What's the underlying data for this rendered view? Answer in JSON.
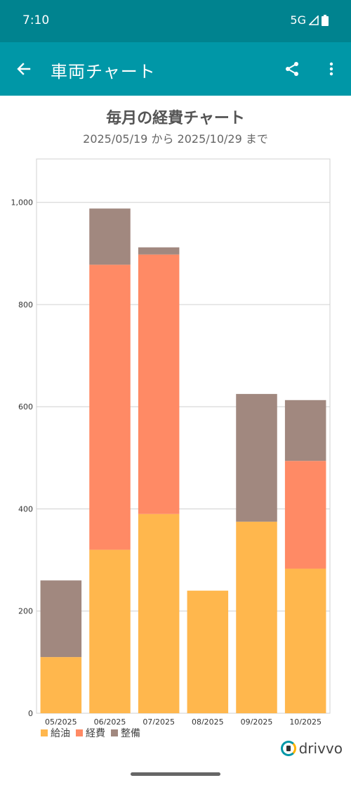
{
  "status_bar": {
    "time": "7:10",
    "network": "5G"
  },
  "app_bar": {
    "title": "車両チャート"
  },
  "chart_header": {
    "title": "毎月の経費チャート",
    "subtitle": "2025/05/19 から 2025/10/29 まで"
  },
  "chart_data": {
    "type": "bar",
    "stacked": true,
    "categories": [
      "05/2025",
      "06/2025",
      "07/2025",
      "08/2025",
      "09/2025",
      "10/2025"
    ],
    "series": [
      {
        "name": "給油",
        "color": "#ffb74d",
        "values": [
          110,
          320,
          390,
          240,
          375,
          283
        ]
      },
      {
        "name": "経費",
        "color": "#ff8a65",
        "values": [
          0,
          558,
          508,
          0,
          0,
          211
        ]
      },
      {
        "name": "整備",
        "color": "#a1887f",
        "values": [
          150,
          110,
          14,
          0,
          250,
          119
        ]
      }
    ],
    "ylim": [
      0,
      1085
    ],
    "yticks": [
      0,
      200,
      400,
      600,
      800,
      1000
    ],
    "ytick_labels": [
      "0",
      "200",
      "400",
      "600",
      "800",
      "1,000"
    ],
    "grid": true,
    "legend": "bottom-left"
  },
  "branding": {
    "name": "drivvo"
  }
}
